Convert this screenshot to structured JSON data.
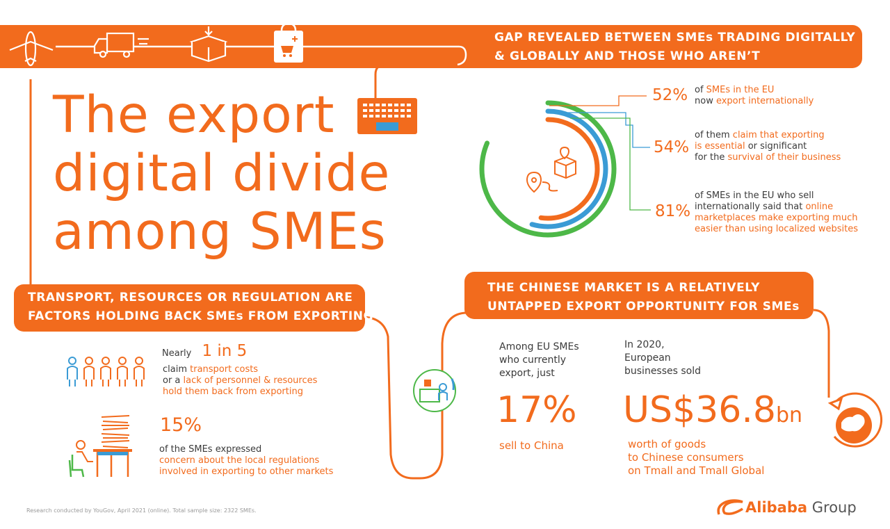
{
  "top_banner": {
    "line1": "GAP REVEALED BETWEEN SMEs TRADING DIGITALLY",
    "line2": "& GLOBALLY AND THOSE WHO AREN’T"
  },
  "title": {
    "line1": "The export",
    "line2": "digital divide",
    "line3": "among SMEs"
  },
  "stats_ring": [
    {
      "pct": "52%",
      "parts": [
        {
          "t": "of ",
          "c": "dark"
        },
        {
          "t": "SMEs in the EU",
          "c": "orange"
        },
        {
          "t": "\nnow ",
          "c": "dark"
        },
        {
          "t": "export internationally",
          "c": "orange"
        }
      ]
    },
    {
      "pct": "54%",
      "parts": [
        {
          "t": "of them ",
          "c": "dark"
        },
        {
          "t": "claim that exporting",
          "c": "orange"
        },
        {
          "t": "\n",
          "c": "dark"
        },
        {
          "t": "is essential",
          "c": "orange"
        },
        {
          "t": " or significant\nfor the ",
          "c": "dark"
        },
        {
          "t": "survival of their business",
          "c": "orange"
        }
      ]
    },
    {
      "pct": "81%",
      "parts": [
        {
          "t": "of SMEs in the EU who sell\ninternationally said that ",
          "c": "dark"
        },
        {
          "t": "online\nmarketplaces make exporting much\neasier than using localized websites",
          "c": "orange"
        }
      ]
    }
  ],
  "left_banner": {
    "line1": "TRANSPORT, RESOURCES OR REGULATION ARE",
    "line2": "FACTORS HOLDING BACK SMEs FROM EXPORTING"
  },
  "transport_stat": {
    "lead": "Nearly",
    "value": "1 in 5",
    "line1_a": "claim ",
    "line1_b": "transport costs",
    "line2_a": "or a ",
    "line2_b": "lack of personnel & resources",
    "line3": "hold them back from exporting"
  },
  "regulation_stat": {
    "value": "15%",
    "line1": "of the SMEs expressed",
    "line2": "concern about the local regulations",
    "line3": "involved in exporting to other markets"
  },
  "right_banner": {
    "line1": "THE CHINESE MARKET IS A RELATIVELY",
    "line2": "UNTAPPED EXPORT OPPORTUNITY FOR SMEs"
  },
  "china_stat_1": {
    "line1": "Among EU SMEs",
    "line2": "who currently",
    "line3": "export, just",
    "value": "17%",
    "caption": "sell to China"
  },
  "china_stat_2": {
    "line1": "In 2020,",
    "line2": "European",
    "line3": "businesses sold",
    "value_main": "US$36.8",
    "value_unit": "bn",
    "cap1": "worth of goods",
    "cap2": "to Chinese consumers",
    "cap3": "on Tmall and Tmall Global"
  },
  "footer": {
    "note": "Research conducted by YouGov, April 2021 (online). Total sample size: 2322 SMEs.",
    "logo_word": "Alibaba",
    "logo_group": "Group"
  },
  "colors": {
    "orange": "#f26b1d",
    "blue": "#3a9bd5",
    "green": "#4db848",
    "dark": "#3a3a3a"
  }
}
